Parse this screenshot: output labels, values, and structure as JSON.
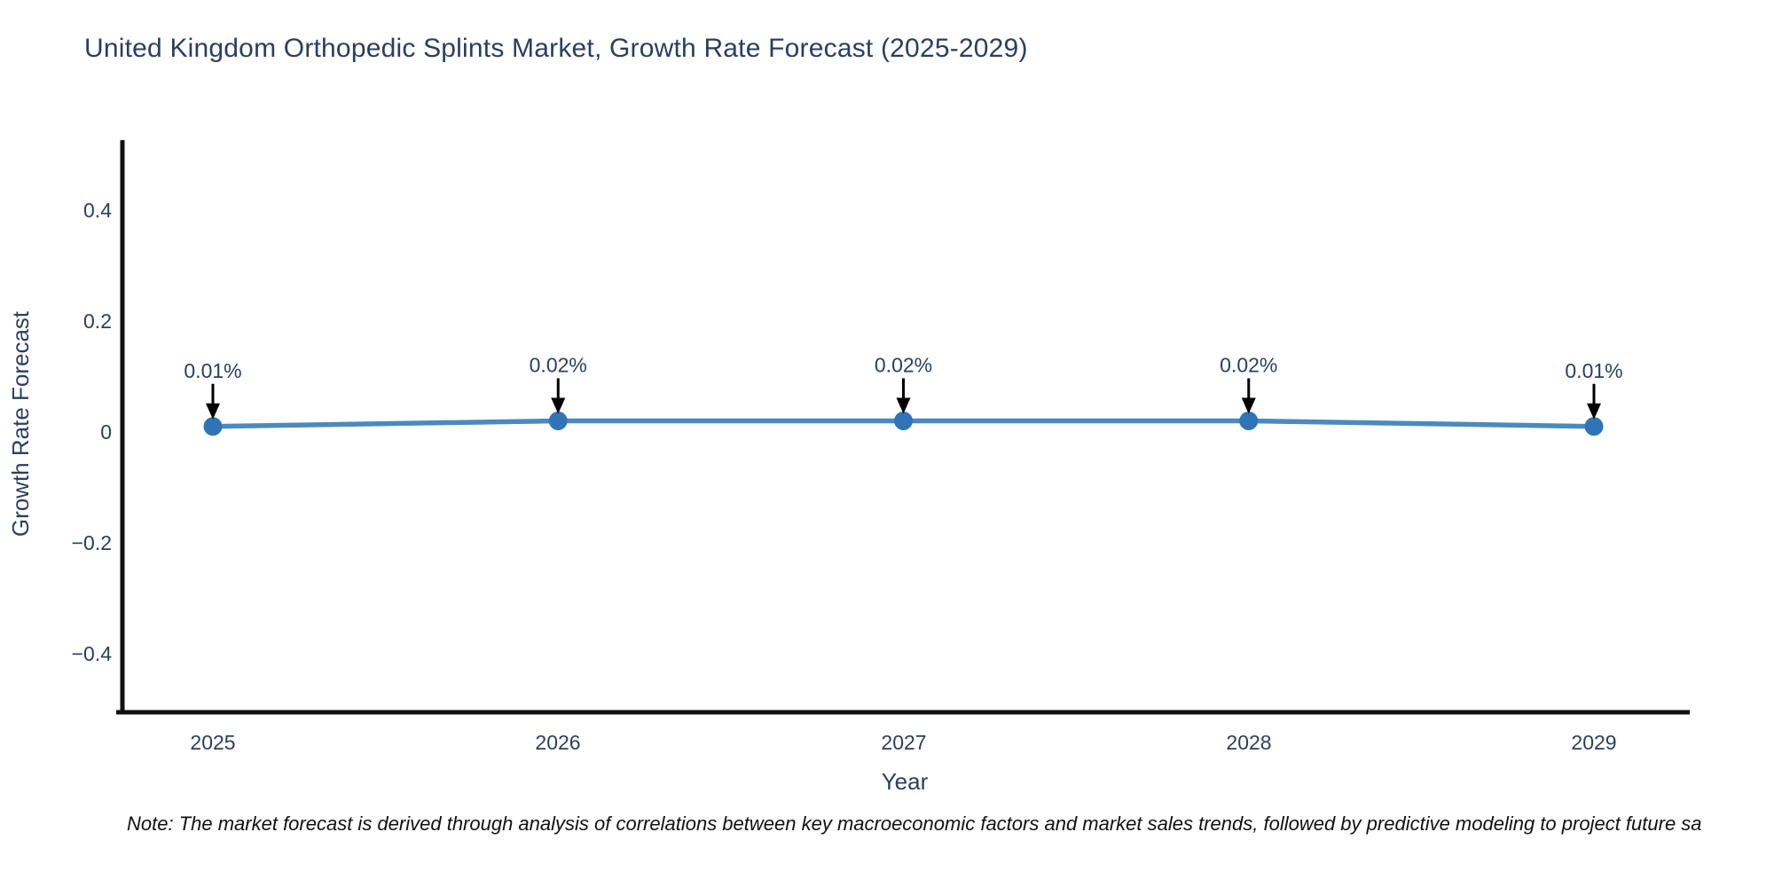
{
  "chart_data": {
    "type": "line",
    "title": "United Kingdom Orthopedic Splints Market, Growth Rate Forecast (2025-2029)",
    "xlabel": "Year",
    "ylabel": "Growth Rate Forecast",
    "categories": [
      "2025",
      "2026",
      "2027",
      "2028",
      "2029"
    ],
    "values": [
      0.01,
      0.02,
      0.02,
      0.02,
      0.01
    ],
    "point_labels": [
      "0.01%",
      "0.02%",
      "0.02%",
      "0.02%",
      "0.01%"
    ],
    "y_ticks": [
      0.4,
      0.2,
      0,
      -0.2,
      -0.4
    ],
    "y_tick_labels": [
      "0.4",
      "0.2",
      "0",
      "−0.2",
      "−0.4"
    ],
    "ylim": [
      -0.5,
      0.52
    ],
    "grid": false,
    "legend_position": "none",
    "colors": {
      "line": "#4a8ac0",
      "marker": "#2e74b6",
      "axis": "#111111",
      "text": "#2a3f5f",
      "annotation": "#000000"
    }
  },
  "note": "Note: The market forecast is derived through analysis of correlations between key macroeconomic factors and market sales trends, followed by predictive modeling to project future sa"
}
